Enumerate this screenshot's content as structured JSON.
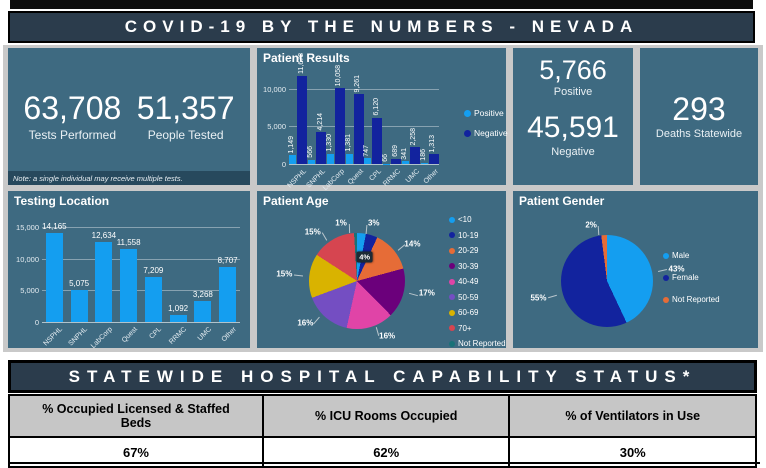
{
  "header": {
    "title": "COVID-19 BY THE NUMBERS - NEVADA"
  },
  "stats": {
    "tests_performed": {
      "value": "63,708",
      "label": "Tests Performed"
    },
    "people_tested": {
      "value": "51,357",
      "label": "People Tested"
    },
    "note": "Note: a single individual may receive multiple tests.",
    "positive": {
      "value": "5,766",
      "label": "Positive"
    },
    "negative": {
      "value": "45,591",
      "label": "Negative"
    },
    "deaths": {
      "value": "293",
      "label": "Deaths Statewide"
    }
  },
  "colors": {
    "banner": "#2b3c4c",
    "panel": "#3e6a81",
    "panel_note_strip": "#27495d",
    "board_background": "#c9c9c9",
    "positive_lightblue": "#149EF0",
    "negative_darkblue": "#12239E",
    "orange": "#E66C37",
    "dark_purple": "#6B007B",
    "pink": "#E044A7",
    "lavender": "#744EC2",
    "gold": "#D9B300",
    "red": "#D64550",
    "teal": "#197278"
  },
  "chart_data": [
    {
      "type": "bar",
      "title": "Patient Results",
      "categories": [
        "NSPHL",
        "SNPHL",
        "LabCorp",
        "Quest",
        "CPL",
        "RRMC",
        "UMC",
        "Other"
      ],
      "series": [
        {
          "name": "Positive",
          "color": "#149EF0",
          "values": [
            1149,
            566,
            1330,
            1381,
            747,
            66,
            341,
            186
          ],
          "labels": [
            "1,149",
            "566",
            "1,330",
            "1,381",
            "747",
            "66",
            "341",
            "186"
          ]
        },
        {
          "name": "Negative",
          "color": "#12239E",
          "values": [
            11678,
            4214,
            10058,
            9261,
            6120,
            689,
            2258,
            1313
          ],
          "labels": [
            "11,678",
            "4,214",
            "10,058",
            "9,261",
            "6,120",
            "689",
            "2,258",
            "1,313"
          ]
        }
      ],
      "y_ticks": [
        {
          "v": 0,
          "label": "0"
        },
        {
          "v": 5000,
          "label": "5,000"
        },
        {
          "v": 10000,
          "label": "10,000"
        }
      ],
      "ylim": [
        0,
        12500
      ],
      "grid": true,
      "legend_position": "right"
    },
    {
      "type": "bar",
      "title": "Testing Location",
      "categories": [
        "NSPHL",
        "SNPHL",
        "LabCorp",
        "Quest",
        "CPL",
        "RRMC",
        "UMC",
        "Other"
      ],
      "series": [
        {
          "name": "Tests",
          "color": "#149EF0",
          "values": [
            14165,
            5075,
            12634,
            11558,
            7209,
            1092,
            3268,
            8707
          ],
          "labels": [
            "14,165",
            "5,075",
            "12,634",
            "11,558",
            "7,209",
            "1,092",
            "3,268",
            "8,707"
          ]
        }
      ],
      "y_ticks": [
        {
          "v": 0,
          "label": "0"
        },
        {
          "v": 5000,
          "label": "5,000"
        },
        {
          "v": 10000,
          "label": "10,000"
        },
        {
          "v": 15000,
          "label": "15,000"
        }
      ],
      "ylim": [
        0,
        16000
      ],
      "grid": true,
      "legend_position": "none"
    },
    {
      "type": "pie",
      "title": "Patient Age",
      "slices": [
        {
          "label": "<10",
          "pct": 3,
          "display": "3%",
          "color": "#149EF0"
        },
        {
          "label": "10-19",
          "pct": 4,
          "display": "4%",
          "color": "#12239E",
          "label_style": "box"
        },
        {
          "label": "20-29",
          "pct": 14,
          "display": "14%",
          "color": "#E66C37"
        },
        {
          "label": "30-39",
          "pct": 17,
          "display": "17%",
          "color": "#6B007B"
        },
        {
          "label": "40-49",
          "pct": 16,
          "display": "16%",
          "color": "#E044A7"
        },
        {
          "label": "50-59",
          "pct": 16,
          "display": "16%",
          "color": "#744EC2"
        },
        {
          "label": "60-69",
          "pct": 15,
          "display": "15%",
          "color": "#D9B300"
        },
        {
          "label": "70+",
          "pct": 15,
          "display": "15%",
          "color": "#D64550"
        },
        {
          "label": "Not Reported",
          "pct": 1,
          "display": "1%",
          "color": "#197278"
        }
      ],
      "legend_position": "right"
    },
    {
      "type": "pie",
      "title": "Patient Gender",
      "slices": [
        {
          "label": "Male",
          "pct": 43,
          "display": "43%",
          "color": "#149EF0"
        },
        {
          "label": "Female",
          "pct": 55,
          "display": "55%",
          "color": "#12239E"
        },
        {
          "label": "Not Reported",
          "pct": 2,
          "display": "2%",
          "color": "#E66C37"
        }
      ],
      "legend_position": "right"
    }
  ],
  "hospital": {
    "title": "STATEWIDE HOSPITAL CAPABILITY STATUS*",
    "columns": [
      {
        "header": "% Occupied Licensed & Staffed Beds",
        "value": "67%"
      },
      {
        "header": "% ICU Rooms Occupied",
        "value": "62%"
      },
      {
        "header": "% of Ventilators in Use",
        "value": "30%"
      }
    ]
  }
}
